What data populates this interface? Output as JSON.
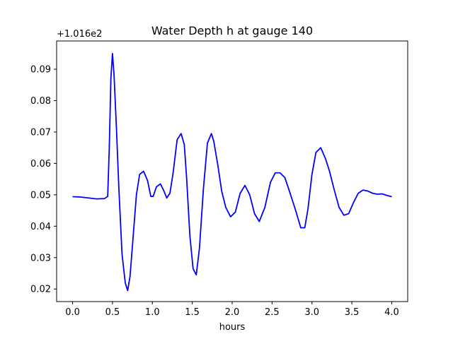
{
  "chart_data": {
    "type": "line",
    "title": "Water Depth h at gauge 140",
    "xlabel": "hours",
    "ylabel": "",
    "y_offset_text": "+1.016e2",
    "xlim": [
      -0.2,
      4.2
    ],
    "ylim": [
      0.016,
      0.099
    ],
    "x_ticks": [
      0.0,
      0.5,
      1.0,
      1.5,
      2.0,
      2.5,
      3.0,
      3.5,
      4.0
    ],
    "x_tick_labels": [
      "0.0",
      "0.5",
      "1.0",
      "1.5",
      "2.0",
      "2.5",
      "3.0",
      "3.5",
      "4.0"
    ],
    "y_ticks": [
      0.02,
      0.03,
      0.04,
      0.05,
      0.06,
      0.07,
      0.08,
      0.09
    ],
    "y_tick_labels": [
      "0.02",
      "0.03",
      "0.04",
      "0.05",
      "0.06",
      "0.07",
      "0.08",
      "0.09"
    ],
    "grid": false,
    "series": [
      {
        "color": "#0000ff",
        "x": [
          0.0,
          0.1,
          0.2,
          0.3,
          0.4,
          0.44,
          0.46,
          0.48,
          0.5,
          0.52,
          0.55,
          0.58,
          0.62,
          0.66,
          0.69,
          0.72,
          0.76,
          0.8,
          0.84,
          0.89,
          0.94,
          0.98,
          1.01,
          1.05,
          1.1,
          1.14,
          1.18,
          1.22,
          1.26,
          1.31,
          1.36,
          1.4,
          1.43,
          1.47,
          1.51,
          1.55,
          1.59,
          1.64,
          1.69,
          1.74,
          1.77,
          1.82,
          1.87,
          1.92,
          1.98,
          2.04,
          2.1,
          2.16,
          2.22,
          2.28,
          2.34,
          2.41,
          2.48,
          2.54,
          2.6,
          2.66,
          2.72,
          2.79,
          2.86,
          2.91,
          2.95,
          3.0,
          3.05,
          3.11,
          3.17,
          3.22,
          3.28,
          3.34,
          3.4,
          3.46,
          3.52,
          3.58,
          3.64,
          3.7,
          3.76,
          3.82,
          3.88,
          3.94,
          4.0
        ],
        "y": [
          0.0494,
          0.0493,
          0.049,
          0.0487,
          0.0488,
          0.0495,
          0.065,
          0.087,
          0.095,
          0.088,
          0.071,
          0.052,
          0.031,
          0.022,
          0.0195,
          0.024,
          0.037,
          0.05,
          0.0565,
          0.0575,
          0.0545,
          0.0495,
          0.0495,
          0.0525,
          0.0535,
          0.0515,
          0.049,
          0.0505,
          0.057,
          0.0675,
          0.0695,
          0.066,
          0.055,
          0.037,
          0.0265,
          0.0245,
          0.033,
          0.052,
          0.0665,
          0.0695,
          0.067,
          0.0595,
          0.051,
          0.046,
          0.043,
          0.0445,
          0.0505,
          0.053,
          0.05,
          0.044,
          0.0415,
          0.046,
          0.054,
          0.057,
          0.057,
          0.0555,
          0.051,
          0.0455,
          0.0395,
          0.0395,
          0.0455,
          0.0565,
          0.0635,
          0.065,
          0.0615,
          0.0575,
          0.0515,
          0.046,
          0.0435,
          0.044,
          0.0475,
          0.0505,
          0.0515,
          0.0512,
          0.0505,
          0.0502,
          0.0503,
          0.0498,
          0.0494
        ]
      }
    ]
  }
}
